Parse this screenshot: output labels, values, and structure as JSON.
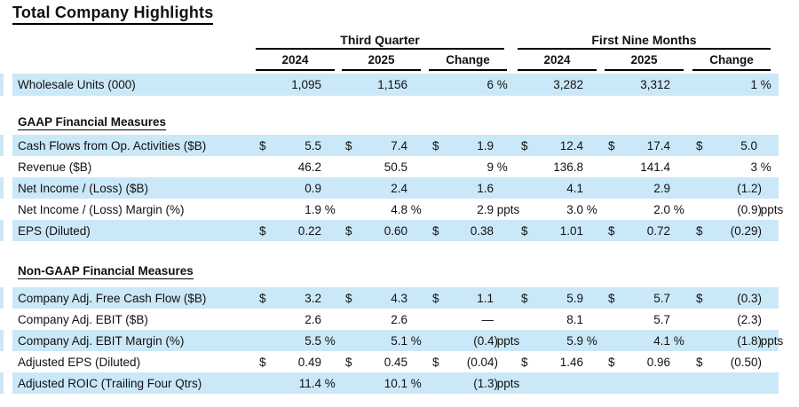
{
  "title": "Total Company Highlights",
  "colors": {
    "row_highlight": "#cbe8f8",
    "text": "#111111",
    "rule": "#000000"
  },
  "table": {
    "groups": [
      {
        "label": "Third Quarter"
      },
      {
        "label": "First Nine Months"
      }
    ],
    "columns": [
      "2024",
      "2025",
      "Change",
      "2024",
      "2025",
      "Change"
    ],
    "sections": [
      {
        "id": "units",
        "header": "",
        "rows": [
          {
            "label": "Wholesale Units (000)",
            "cells": [
              [
                "",
                "1,095",
                ""
              ],
              [
                "",
                "1,156",
                ""
              ],
              [
                "",
                "6",
                " %"
              ],
              [
                "",
                "3,282",
                ""
              ],
              [
                "",
                "3,312",
                ""
              ],
              [
                "",
                "1",
                " %"
              ]
            ]
          }
        ]
      },
      {
        "id": "gaap",
        "header": "GAAP Financial Measures",
        "rows": [
          {
            "label": "Cash Flows from Op. Activities ($B)",
            "cells": [
              [
                "$",
                "5.5",
                ""
              ],
              [
                "$",
                "7.4",
                ""
              ],
              [
                "$",
                "1.9",
                ""
              ],
              [
                "$",
                "12.4",
                ""
              ],
              [
                "$",
                "17.4",
                ""
              ],
              [
                "$",
                "5.0",
                ""
              ]
            ]
          },
          {
            "label": "Revenue ($B)",
            "cells": [
              [
                "",
                "46.2",
                ""
              ],
              [
                "",
                "50.5",
                ""
              ],
              [
                "",
                "9",
                " %"
              ],
              [
                "",
                "136.8",
                ""
              ],
              [
                "",
                "141.4",
                ""
              ],
              [
                "",
                "3",
                " %"
              ]
            ]
          },
          {
            "label": "Net Income / (Loss) ($B)",
            "cells": [
              [
                "",
                "0.9",
                ""
              ],
              [
                "",
                "2.4",
                ""
              ],
              [
                "",
                "1.6",
                ""
              ],
              [
                "",
                "4.1",
                ""
              ],
              [
                "",
                "2.9",
                ""
              ],
              [
                "",
                "(1.2)",
                ""
              ]
            ]
          },
          {
            "label": "Net Income / (Loss) Margin (%)",
            "cells": [
              [
                "",
                "1.9",
                " %"
              ],
              [
                "",
                "4.8",
                " %"
              ],
              [
                "",
                "2.9",
                " ppts"
              ],
              [
                "",
                "3.0",
                " %"
              ],
              [
                "",
                "2.0",
                " %"
              ],
              [
                "",
                "(0.9)",
                " ppts"
              ]
            ]
          },
          {
            "label": "EPS (Diluted)",
            "cells": [
              [
                "$",
                "0.22",
                ""
              ],
              [
                "$",
                "0.60",
                ""
              ],
              [
                "$",
                "0.38",
                ""
              ],
              [
                "$",
                "1.01",
                ""
              ],
              [
                "$",
                "0.72",
                ""
              ],
              [
                "$",
                "(0.29)",
                ""
              ]
            ]
          }
        ]
      },
      {
        "id": "nongaap",
        "header": "Non-GAAP Financial Measures",
        "rows": [
          {
            "label": "Company Adj. Free Cash Flow ($B)",
            "cells": [
              [
                "$",
                "3.2",
                ""
              ],
              [
                "$",
                "4.3",
                ""
              ],
              [
                "$",
                "1.1",
                ""
              ],
              [
                "$",
                "5.9",
                ""
              ],
              [
                "$",
                "5.7",
                ""
              ],
              [
                "$",
                "(0.3)",
                ""
              ]
            ]
          },
          {
            "label": "Company Adj. EBIT ($B)",
            "cells": [
              [
                "",
                "2.6",
                ""
              ],
              [
                "",
                "2.6",
                ""
              ],
              [
                "",
                "—",
                ""
              ],
              [
                "",
                "8.1",
                ""
              ],
              [
                "",
                "5.7",
                ""
              ],
              [
                "",
                "(2.3)",
                ""
              ]
            ]
          },
          {
            "label": "Company Adj. EBIT Margin (%)",
            "cells": [
              [
                "",
                "5.5",
                " %"
              ],
              [
                "",
                "5.1",
                " %"
              ],
              [
                "",
                "(0.4)",
                " ppts"
              ],
              [
                "",
                "5.9",
                " %"
              ],
              [
                "",
                "4.1",
                " %"
              ],
              [
                "",
                "(1.8)",
                " ppts"
              ]
            ]
          },
          {
            "label": "Adjusted EPS (Diluted)",
            "cells": [
              [
                "$",
                "0.49",
                ""
              ],
              [
                "$",
                "0.45",
                ""
              ],
              [
                "$",
                "(0.04)",
                ""
              ],
              [
                "$",
                "1.46",
                ""
              ],
              [
                "$",
                "0.96",
                ""
              ],
              [
                "$",
                "(0.50)",
                ""
              ]
            ]
          },
          {
            "label": "Adjusted ROIC (Trailing Four Qtrs)",
            "cells": [
              [
                "",
                "11.4",
                " %"
              ],
              [
                "",
                "10.1",
                " %"
              ],
              [
                "",
                "(1.3)",
                " ppts"
              ],
              [
                "",
                "",
                ""
              ],
              [
                "",
                "",
                ""
              ],
              [
                "",
                "",
                ""
              ]
            ]
          }
        ]
      }
    ]
  }
}
